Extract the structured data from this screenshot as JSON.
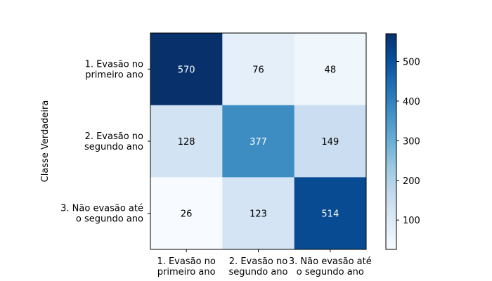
{
  "chart_data": {
    "type": "heatmap",
    "title": "",
    "xlabel": "",
    "ylabel": "Classe Verdadeira",
    "x_categories": [
      [
        "1. Evasão no",
        "primeiro ano"
      ],
      [
        "2. Evasão no",
        "segundo ano"
      ],
      [
        "3. Não evasão até",
        "o segundo ano"
      ]
    ],
    "y_categories": [
      [
        "1. Evasão no",
        "primeiro ano"
      ],
      [
        "2. Evasão no",
        "segundo ano"
      ],
      [
        "3. Não evasão até",
        "o segundo ano"
      ]
    ],
    "values": [
      [
        570,
        76,
        48
      ],
      [
        128,
        377,
        149
      ],
      [
        26,
        123,
        514
      ]
    ],
    "colormap": "Blues",
    "colorbar": {
      "min": 26,
      "max": 570,
      "ticks": [
        100,
        200,
        300,
        400,
        500
      ]
    }
  }
}
